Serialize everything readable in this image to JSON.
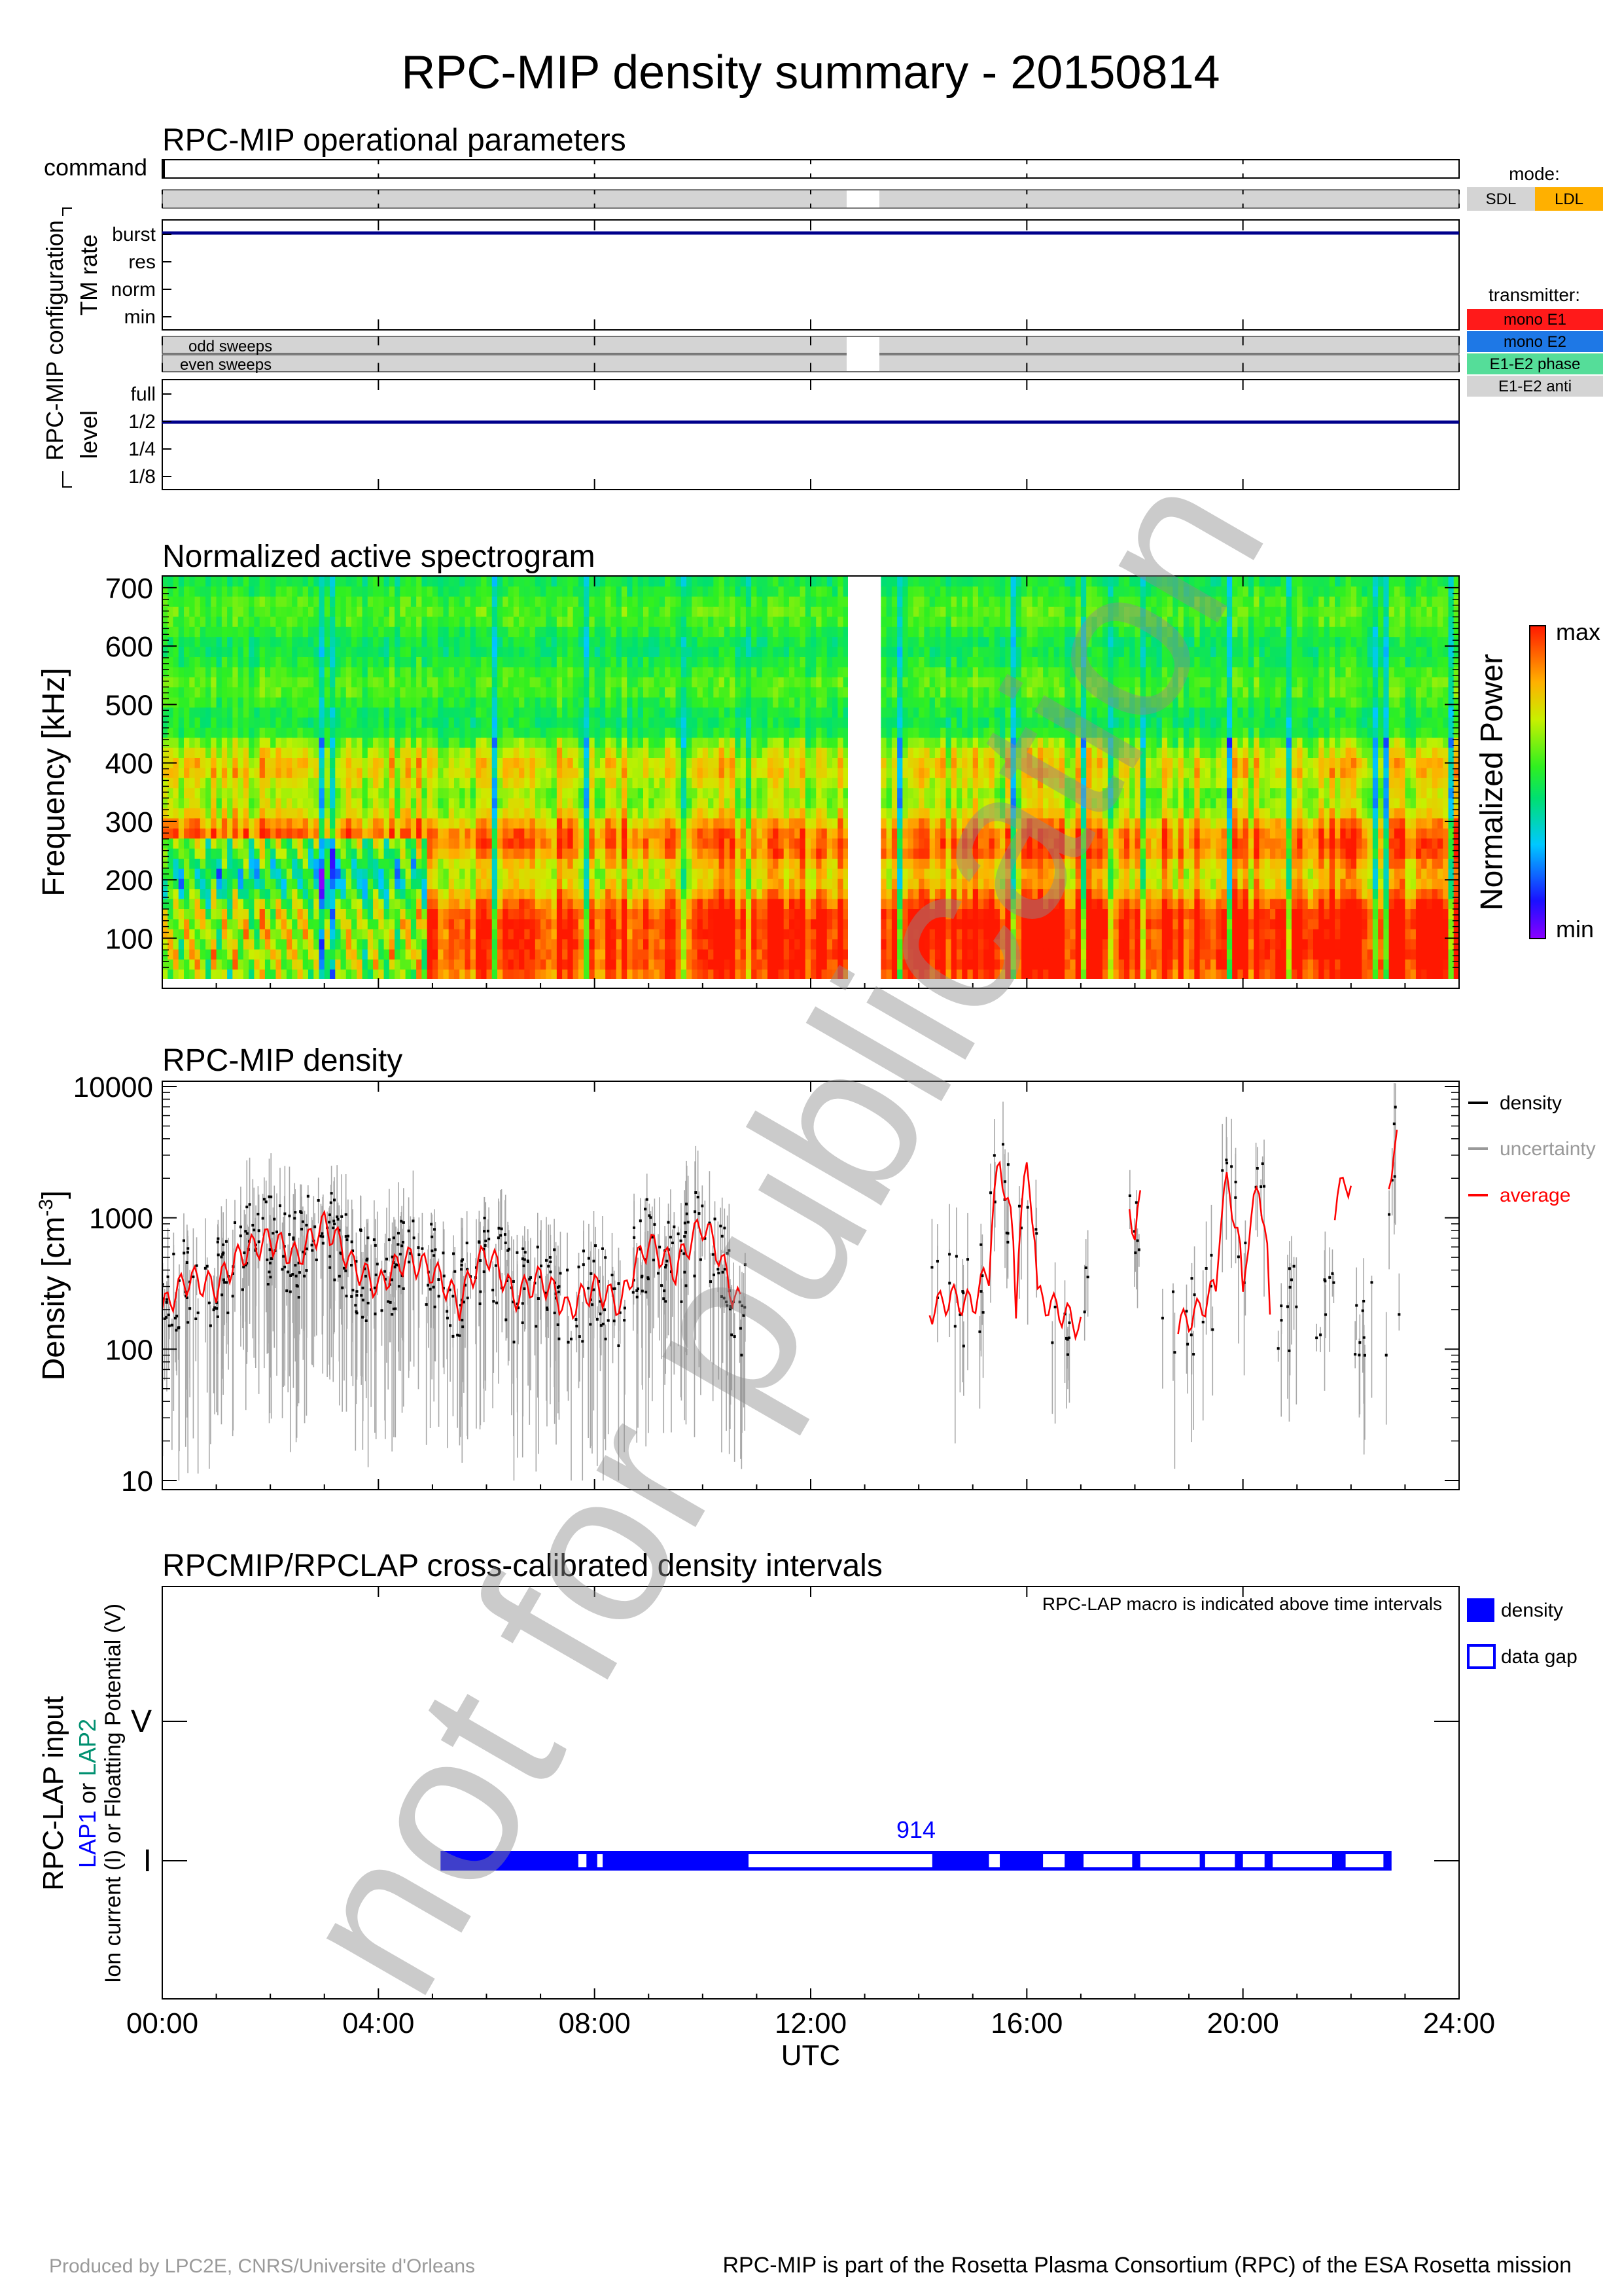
{
  "page": {
    "title": "RPC-MIP density summary - 20150814",
    "footer_left": "Produced by LPC2E, CNRS/Universite d'Orleans",
    "footer_right": "RPC-MIP is part of the Rosetta Plasma Consortium (RPC) of the ESA Rosetta mission",
    "watermark": "not for publication"
  },
  "time_axis": {
    "ticks": [
      "00:00",
      "04:00",
      "08:00",
      "12:00",
      "16:00",
      "20:00",
      "24:00"
    ],
    "label": "UTC",
    "range_hours": [
      0,
      24
    ]
  },
  "operational": {
    "title": "RPC-MIP operational parameters",
    "command_label": "command",
    "config_label": "RPC-MIP configuration",
    "tm_rate_label": "TM rate",
    "tm_rate_levels": [
      "burst",
      "res",
      "norm",
      "min"
    ],
    "tm_rate_value": "burst",
    "odd_label": "odd sweeps",
    "even_label": "even sweeps",
    "level_label": "level",
    "levels": [
      "full",
      "1/2",
      "1/4",
      "1/8"
    ],
    "level_value": "1/2",
    "data_gap_hours": [
      12.67,
      13.27
    ],
    "mode_title": "mode:",
    "modes": [
      {
        "name": "SDL",
        "color": "#d4d4d4"
      },
      {
        "name": "LDL",
        "color": "#ffb000"
      }
    ],
    "transmitter_title": "transmitter:",
    "transmitters": [
      {
        "name": "mono E1",
        "color": "#ff1a1a"
      },
      {
        "name": "mono E2",
        "color": "#1e78e6"
      },
      {
        "name": "E1-E2 phase",
        "color": "#55dd99"
      },
      {
        "name": "E1-E2 anti",
        "color": "#d4d4d4"
      }
    ]
  },
  "spectrogram": {
    "title": "Normalized active spectrogram",
    "ylabel": "Frequency [kHz]",
    "yticks": [
      "100",
      "200",
      "300",
      "400",
      "500",
      "600",
      "700"
    ],
    "ylim": [
      30,
      720
    ],
    "colorbar_label": "Normalized Power",
    "colorbar_max": "max",
    "colorbar_min": "min"
  },
  "density": {
    "title": "RPC-MIP density",
    "ylabel": "Density [cm",
    "ylabel_sup": "-3",
    "ylabel_end": "]",
    "yticks": [
      "10",
      "100",
      "1000",
      "10000"
    ],
    "legend": [
      {
        "name": "density",
        "color": "#000000"
      },
      {
        "name": "uncertainty",
        "color": "#999999"
      },
      {
        "name": "average",
        "color": "#ff0000"
      }
    ]
  },
  "crosscal": {
    "title": "RPCMIP/RPCLAP cross-calibrated density intervals",
    "note": "RPC-LAP macro is indicated above time intervals",
    "ylabel1": "RPC-LAP input",
    "ylabel2_a": "LAP1",
    "ylabel2_b": " or ",
    "ylabel2_c": "LAP2",
    "ylabel3": "Ion current (I) or Floatting Potential (V)",
    "levels": [
      "V",
      "I"
    ],
    "macro": "914",
    "legend": [
      {
        "name": "density"
      },
      {
        "name": "data gap"
      }
    ],
    "bar_color": "#0000ff"
  },
  "chart_data": [
    {
      "type": "line",
      "title": "RPC-MIP operational parameters",
      "series": [
        {
          "name": "TM rate",
          "x": [
            0,
            24
          ],
          "y": [
            "burst",
            "burst"
          ]
        },
        {
          "name": "level",
          "x": [
            0,
            24
          ],
          "y": [
            "1/2",
            "1/2"
          ]
        }
      ]
    },
    {
      "type": "heatmap",
      "title": "Normalized active spectrogram",
      "xlabel": "UTC",
      "ylabel": "Frequency [kHz]",
      "xlim": [
        0,
        24
      ],
      "ylim": [
        30,
        720
      ],
      "gap": [
        12.67,
        13.27
      ],
      "strong_bands_khz": [
        260,
        130,
        60
      ],
      "low_power_interval_hours": [
        0,
        4.9
      ]
    },
    {
      "type": "line",
      "title": "RPC-MIP density",
      "xlabel": "UTC",
      "ylabel": "Density [cm-3]",
      "scale": "log",
      "ylim": [
        10,
        10000
      ],
      "series": [
        {
          "name": "average",
          "x": [
            0.0,
            0.5,
            1.0,
            1.5,
            2.0,
            2.5,
            3.0,
            3.5,
            4.0,
            4.5,
            5.0,
            5.5,
            6.0,
            6.5,
            7.0,
            7.5,
            8.0,
            8.5,
            9.0,
            9.5,
            10.0,
            10.5,
            10.7
          ],
          "y": [
            200,
            350,
            300,
            550,
            700,
            500,
            900,
            450,
            300,
            500,
            400,
            220,
            550,
            250,
            350,
            200,
            300,
            220,
            650,
            400,
            900,
            300,
            220
          ]
        },
        {
          "name": "average",
          "x": [
            14.2,
            14.6,
            15.0,
            15.3,
            15.5,
            15.8,
            16.0,
            16.2,
            16.6,
            17.0
          ],
          "y": [
            200,
            250,
            220,
            400,
            2500,
            200,
            2200,
            250,
            200,
            150
          ]
        },
        {
          "name": "average",
          "x": [
            17.9,
            18.0,
            18.1
          ],
          "y": [
            1200,
            800,
            1300
          ]
        },
        {
          "name": "average",
          "x": [
            18.8,
            19.2,
            19.5,
            19.7,
            20.0,
            20.3,
            20.5
          ],
          "y": [
            150,
            200,
            300,
            1800,
            250,
            1700,
            150
          ]
        },
        {
          "name": "average",
          "x": [
            21.7,
            21.9,
            22.0
          ],
          "y": [
            1200,
            2000,
            1800
          ]
        },
        {
          "name": "average",
          "x": [
            22.7,
            22.85
          ],
          "y": [
            2000,
            3800
          ]
        }
      ],
      "density_coverage_hours": [
        [
          0,
          10.8
        ],
        [
          14.1,
          17.2
        ],
        [
          17.8,
          18.2
        ],
        [
          18.5,
          22.95
        ]
      ]
    },
    {
      "type": "bar",
      "title": "RPCMIP/RPCLAP cross-calibrated density intervals",
      "xlabel": "UTC",
      "ylabel": "RPC-LAP input",
      "level": "I",
      "range_hours": [
        5.15,
        22.75
      ],
      "data_gaps_hours": [
        [
          7.7,
          7.85
        ],
        [
          8.05,
          8.15
        ],
        [
          10.85,
          14.25
        ],
        [
          15.3,
          15.5
        ],
        [
          16.3,
          16.7
        ],
        [
          17.05,
          17.95
        ],
        [
          18.1,
          19.2
        ],
        [
          19.3,
          19.85
        ],
        [
          20.0,
          20.4
        ],
        [
          20.55,
          21.65
        ],
        [
          21.9,
          22.6
        ]
      ],
      "macro": "914"
    }
  ]
}
